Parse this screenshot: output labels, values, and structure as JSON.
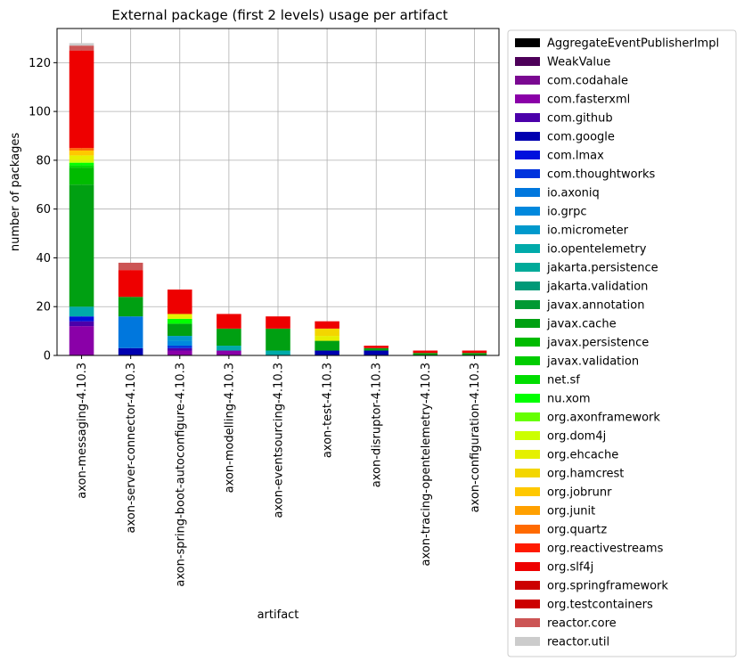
{
  "chart_data": {
    "type": "bar",
    "stacked": true,
    "title": "External package (first 2 levels) usage per artifact",
    "xlabel": "artifact",
    "ylabel": "number of packages",
    "ylim": [
      0,
      134
    ],
    "yticks": [
      0,
      20,
      40,
      60,
      80,
      100,
      120
    ],
    "grid": true,
    "legend_position": "outside-right",
    "categories": [
      "axon-messaging-4.10.3",
      "axon-server-connector-4.10.3",
      "axon-spring-boot-autoconfigure-4.10.3",
      "axon-modelling-4.10.3",
      "axon-eventsourcing-4.10.3",
      "axon-test-4.10.3",
      "axon-disruptor-4.10.3",
      "axon-tracing-opentelemetry-4.10.3",
      "axon-configuration-4.10.3"
    ],
    "series": [
      {
        "name": "AggregateEventPublisherImpl",
        "color": "#000000",
        "values": [
          0,
          0,
          0,
          0,
          0,
          0,
          0,
          0,
          0
        ]
      },
      {
        "name": "WeakValue",
        "color": "#4d0059",
        "values": [
          0,
          0,
          0,
          0,
          0,
          0,
          0,
          0,
          0
        ]
      },
      {
        "name": "com.codahale",
        "color": "#7a0891",
        "values": [
          0,
          0,
          0,
          0,
          0,
          0,
          0,
          0,
          0
        ]
      },
      {
        "name": "com.fasterxml",
        "color": "#8a00a8",
        "values": [
          12,
          0,
          2,
          2,
          0,
          0,
          0,
          0,
          0
        ]
      },
      {
        "name": "com.github",
        "color": "#4b00aa",
        "values": [
          2,
          0,
          1,
          0,
          0,
          0,
          0,
          0,
          0
        ]
      },
      {
        "name": "com.google",
        "color": "#0000b0",
        "values": [
          0,
          3,
          0,
          0,
          0,
          2,
          2,
          0,
          0
        ]
      },
      {
        "name": "com.lmax",
        "color": "#0010dd",
        "values": [
          2,
          0,
          0,
          0,
          0,
          0,
          0,
          0,
          0
        ]
      },
      {
        "name": "com.thoughtworks",
        "color": "#0033dd",
        "values": [
          0,
          0,
          1,
          0,
          0,
          0,
          0,
          0,
          0
        ]
      },
      {
        "name": "io.axoniq",
        "color": "#0077dd",
        "values": [
          0,
          13,
          0,
          0,
          0,
          0,
          0,
          0,
          0
        ]
      },
      {
        "name": "io.grpc",
        "color": "#0088dd",
        "values": [
          0,
          0,
          2,
          0,
          0,
          0,
          0,
          0,
          0
        ]
      },
      {
        "name": "io.micrometer",
        "color": "#0099cc",
        "values": [
          0,
          0,
          2,
          0,
          0,
          0,
          0,
          0,
          0
        ]
      },
      {
        "name": "io.opentelemetry",
        "color": "#00aaaa",
        "values": [
          4,
          0,
          0,
          2,
          2,
          0,
          0,
          0,
          0
        ]
      },
      {
        "name": "jakarta.persistence",
        "color": "#00aa99",
        "values": [
          0,
          0,
          0,
          0,
          0,
          0,
          0,
          0,
          0
        ]
      },
      {
        "name": "jakarta.validation",
        "color": "#009977",
        "values": [
          0,
          0,
          0,
          0,
          0,
          0,
          0,
          0,
          0
        ]
      },
      {
        "name": "javax.annotation",
        "color": "#009933",
        "values": [
          0,
          0,
          0,
          0,
          0,
          0,
          0,
          0,
          0
        ]
      },
      {
        "name": "javax.cache",
        "color": "#00a012",
        "values": [
          50,
          8,
          5,
          7,
          9,
          4,
          1,
          1,
          1
        ]
      },
      {
        "name": "javax.persistence",
        "color": "#00bb00",
        "values": [
          7,
          0,
          0,
          0,
          0,
          0,
          0,
          0,
          0
        ]
      },
      {
        "name": "javax.validation",
        "color": "#00cc00",
        "values": [
          0,
          0,
          0,
          0,
          0,
          0,
          0,
          0,
          0
        ]
      },
      {
        "name": "net.sf",
        "color": "#00dd00",
        "values": [
          1,
          0,
          0,
          0,
          0,
          0,
          0,
          0,
          0
        ]
      },
      {
        "name": "nu.xom",
        "color": "#00ff00",
        "values": [
          1,
          0,
          2,
          0,
          0,
          0,
          0,
          0,
          0
        ]
      },
      {
        "name": "org.axonframework",
        "color": "#66ff00",
        "values": [
          0,
          0,
          0,
          0,
          0,
          0,
          0,
          0,
          0
        ]
      },
      {
        "name": "org.dom4j",
        "color": "#ccff00",
        "values": [
          1,
          0,
          0,
          0,
          0,
          0,
          0,
          0,
          0
        ]
      },
      {
        "name": "org.ehcache",
        "color": "#e5f000",
        "values": [
          2,
          0,
          2,
          0,
          0,
          2,
          0,
          0,
          0
        ]
      },
      {
        "name": "org.hamcrest",
        "color": "#f3d600",
        "values": [
          0,
          0,
          0,
          0,
          0,
          3,
          0,
          0,
          0
        ]
      },
      {
        "name": "org.jobrunr",
        "color": "#ffc800",
        "values": [
          2,
          0,
          0,
          0,
          0,
          0,
          0,
          0,
          0
        ]
      },
      {
        "name": "org.junit",
        "color": "#ffa000",
        "values": [
          0,
          0,
          0,
          0,
          0,
          0,
          0,
          0,
          0
        ]
      },
      {
        "name": "org.quartz",
        "color": "#ff6a00",
        "values": [
          1,
          0,
          0,
          0,
          0,
          0,
          0,
          0,
          0
        ]
      },
      {
        "name": "org.reactivestreams",
        "color": "#ff1a00",
        "values": [
          0,
          0,
          0,
          0,
          0,
          0,
          0,
          0,
          0
        ]
      },
      {
        "name": "org.slf4j",
        "color": "#ee0000",
        "values": [
          40,
          11,
          10,
          6,
          5,
          3,
          1,
          1,
          1
        ]
      },
      {
        "name": "org.springframework",
        "color": "#cc0000",
        "values": [
          0,
          0,
          0,
          0,
          0,
          0,
          0,
          0,
          0
        ]
      },
      {
        "name": "org.testcontainers",
        "color": "#cc0000",
        "values": [
          0,
          0,
          0,
          0,
          0,
          0,
          0,
          0,
          0
        ]
      },
      {
        "name": "reactor.core",
        "color": "#cc5555",
        "values": [
          2,
          3,
          0,
          0,
          0,
          0,
          0,
          0,
          0
        ]
      },
      {
        "name": "reactor.util",
        "color": "#cccccc",
        "values": [
          1,
          0,
          0,
          0,
          0,
          0,
          0,
          0,
          0
        ]
      }
    ]
  }
}
